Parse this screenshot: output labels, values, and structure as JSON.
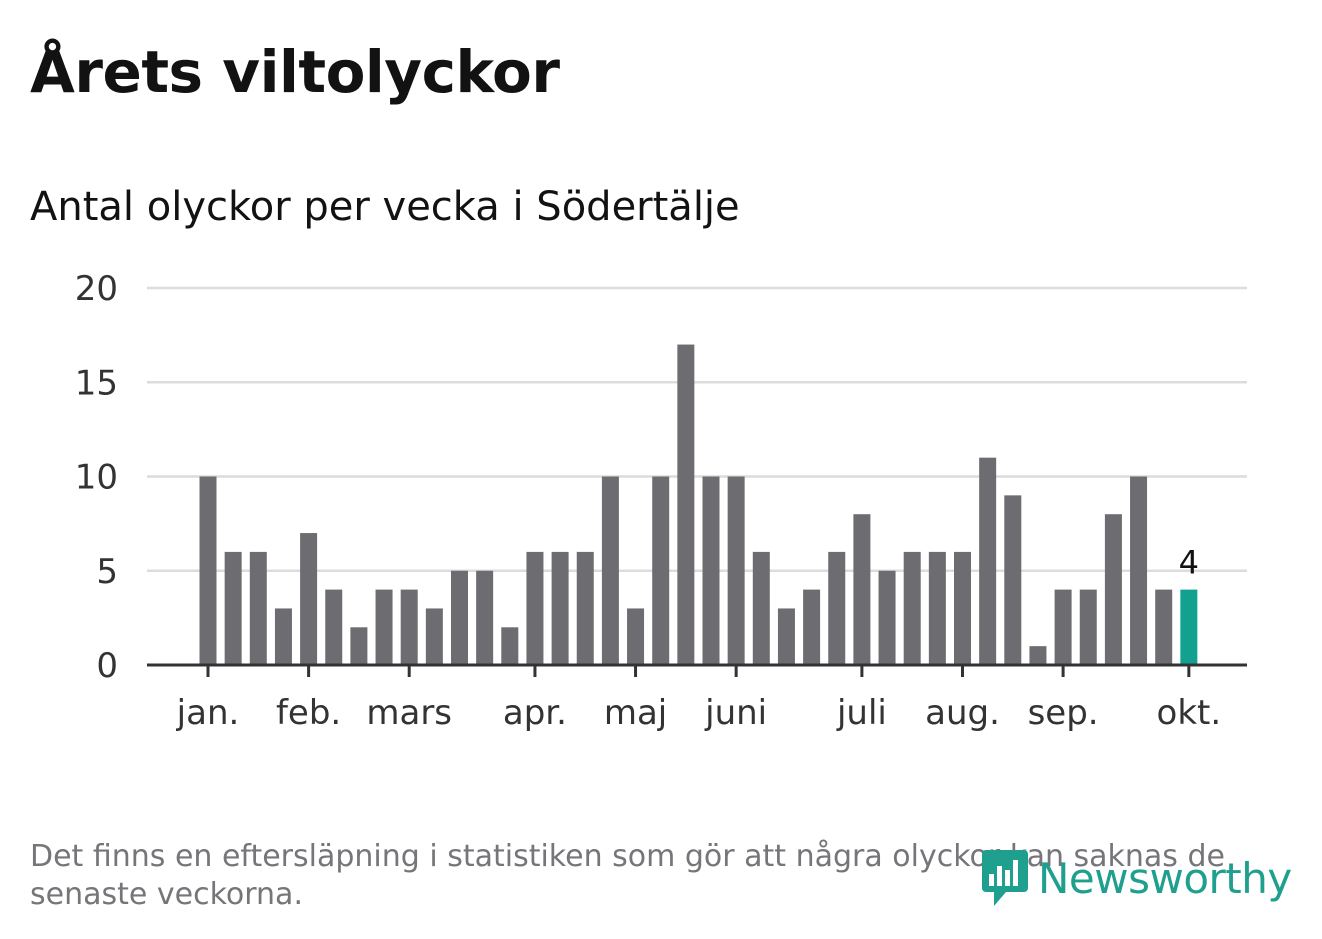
{
  "title": "Årets viltolyckor",
  "subtitle": "Antal olyckor per vecka i Södertälje",
  "footnote": "Det finns en eftersläpning i statistiken som gör att några olyckor kan saknas de senaste veckorna.",
  "logo": {
    "text": "Newsworthy",
    "icon": "newsworthy-logo-icon"
  },
  "colors": {
    "bar": "#6d6c71",
    "highlight": "#12a08f",
    "grid": "#dcdcdc",
    "axis": "#333333",
    "text": "#333333"
  },
  "chart_data": {
    "type": "bar",
    "title": "Antal olyckor per vecka i Södertälje",
    "xlabel": "",
    "ylabel": "",
    "ylim": [
      0,
      20
    ],
    "yticks": [
      0,
      5,
      10,
      15,
      20
    ],
    "grid": true,
    "values": [
      10,
      6,
      6,
      3,
      7,
      4,
      2,
      4,
      4,
      3,
      5,
      5,
      2,
      6,
      6,
      6,
      10,
      3,
      10,
      17,
      10,
      10,
      6,
      3,
      4,
      6,
      8,
      5,
      6,
      6,
      6,
      11,
      9,
      1,
      4,
      4,
      8,
      10,
      4,
      4
    ],
    "highlight_index": 39,
    "highlight_label": "4",
    "month_labels": [
      {
        "label": "jan.",
        "bar_index": 0
      },
      {
        "label": "feb.",
        "bar_index": 4
      },
      {
        "label": "mars",
        "bar_index": 8
      },
      {
        "label": "apr.",
        "bar_index": 13
      },
      {
        "label": "maj",
        "bar_index": 17
      },
      {
        "label": "juni",
        "bar_index": 21
      },
      {
        "label": "juli",
        "bar_index": 26
      },
      {
        "label": "aug.",
        "bar_index": 30
      },
      {
        "label": "sep.",
        "bar_index": 34
      },
      {
        "label": "okt.",
        "bar_index": 39
      }
    ]
  }
}
